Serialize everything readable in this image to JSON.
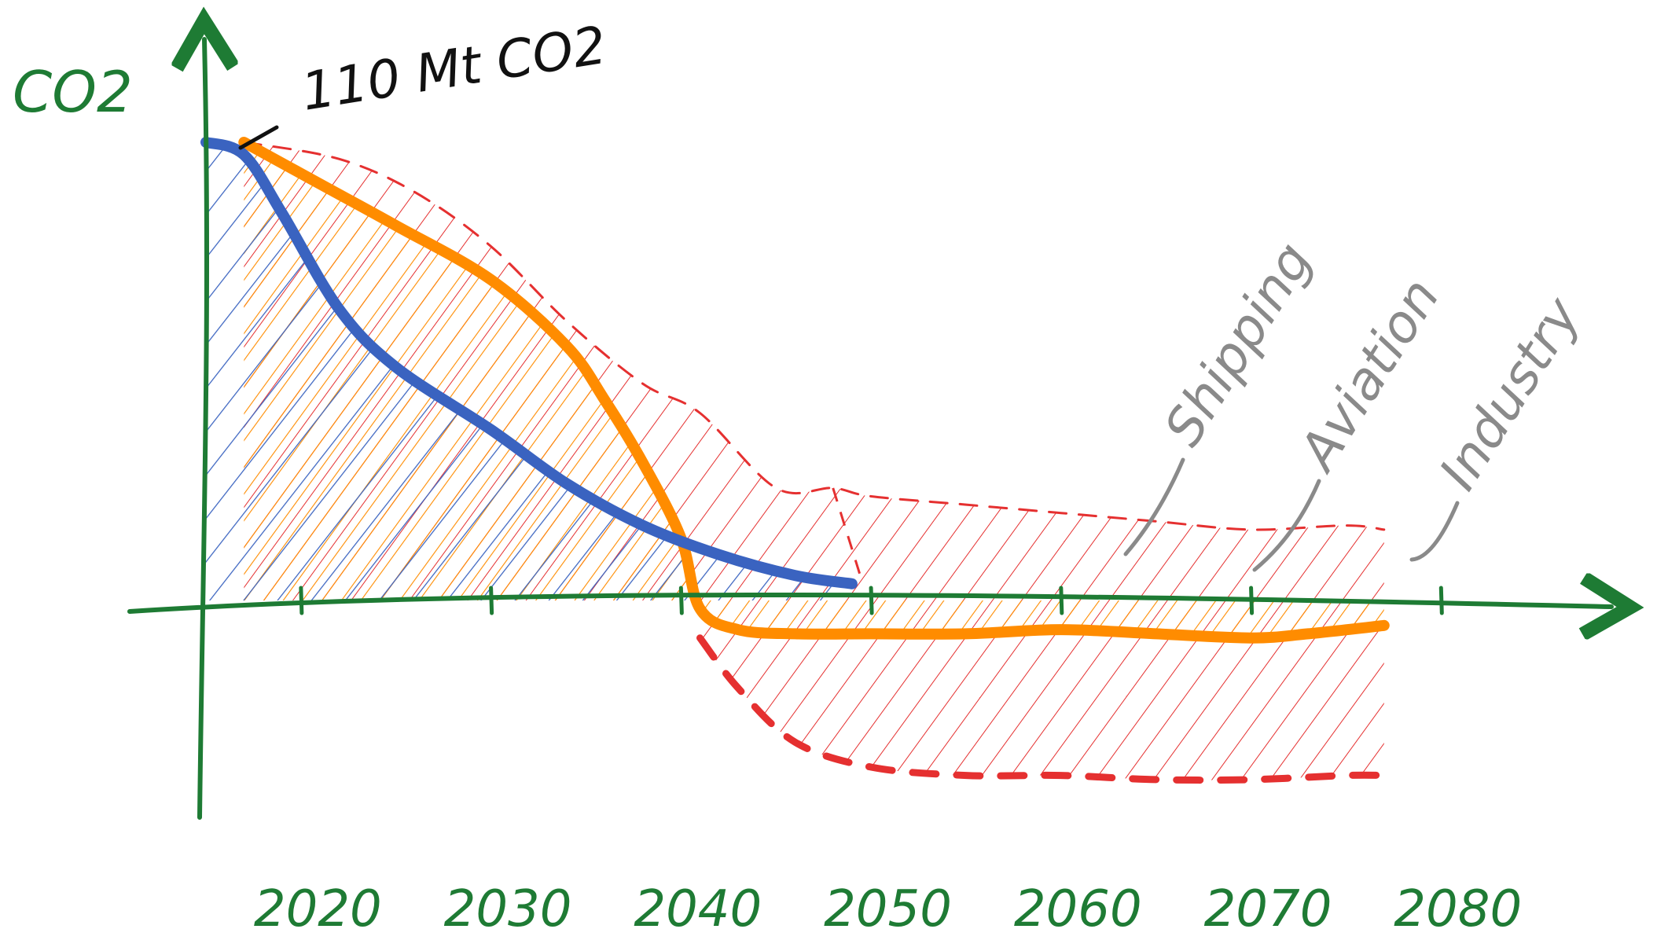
{
  "chart_data": {
    "type": "area",
    "title": "",
    "ylabel": "CO2",
    "xlabel": "",
    "annotation": "110 Mt CO2",
    "x_ticks": [
      2020,
      2030,
      2040,
      2050,
      2060,
      2070,
      2080
    ],
    "xlim": [
      2015,
      2084
    ],
    "ylim": [
      -50,
      132
    ],
    "grid": false,
    "colors": {
      "axes": "#1e7b34",
      "blue": "#3a63c0",
      "orange": "#ff8c00",
      "red": "#e53030",
      "grey": "#8a8a8a",
      "black": "#111111"
    },
    "series": [
      {
        "color": "blue",
        "x": [
          2015,
          2017,
          2019,
          2022,
          2025,
          2030,
          2034,
          2038,
          2042,
          2046,
          2049
        ],
        "y": [
          110,
          107,
          93,
          70,
          56,
          41,
          28,
          18,
          11,
          6,
          4
        ]
      },
      {
        "color": "orange",
        "x": [
          2017,
          2021,
          2025,
          2030,
          2034,
          2036,
          2038,
          2040,
          2041,
          2043,
          2046,
          2050,
          2055,
          2060,
          2065,
          2070,
          2073,
          2077
        ],
        "y": [
          110,
          100,
          90,
          77,
          61,
          48,
          33,
          15,
          -2,
          -7,
          -8,
          -8,
          -8,
          -7,
          -8,
          -9,
          -8,
          -6
        ]
      },
      {
        "color": "red",
        "x": [
          2017,
          2022,
          2026,
          2030,
          2034,
          2038,
          2041,
          2045,
          2048,
          2050,
          2055,
          2060,
          2065,
          2070,
          2075,
          2077
        ],
        "y": [
          110,
          106,
          98,
          85,
          67,
          52,
          45,
          27,
          27,
          25,
          23,
          21,
          19,
          17,
          18,
          17
        ]
      },
      {
        "color": "red",
        "x": [
          2041,
          2043,
          2046,
          2050,
          2055,
          2060,
          2065,
          2070,
          2075,
          2077
        ],
        "y": [
          -9,
          -21,
          -34,
          -40,
          -42,
          -42,
          -43,
          -43,
          -42,
          -42
        ]
      }
    ],
    "labels": [
      "Shipping",
      "Aviation",
      "Industry"
    ]
  }
}
